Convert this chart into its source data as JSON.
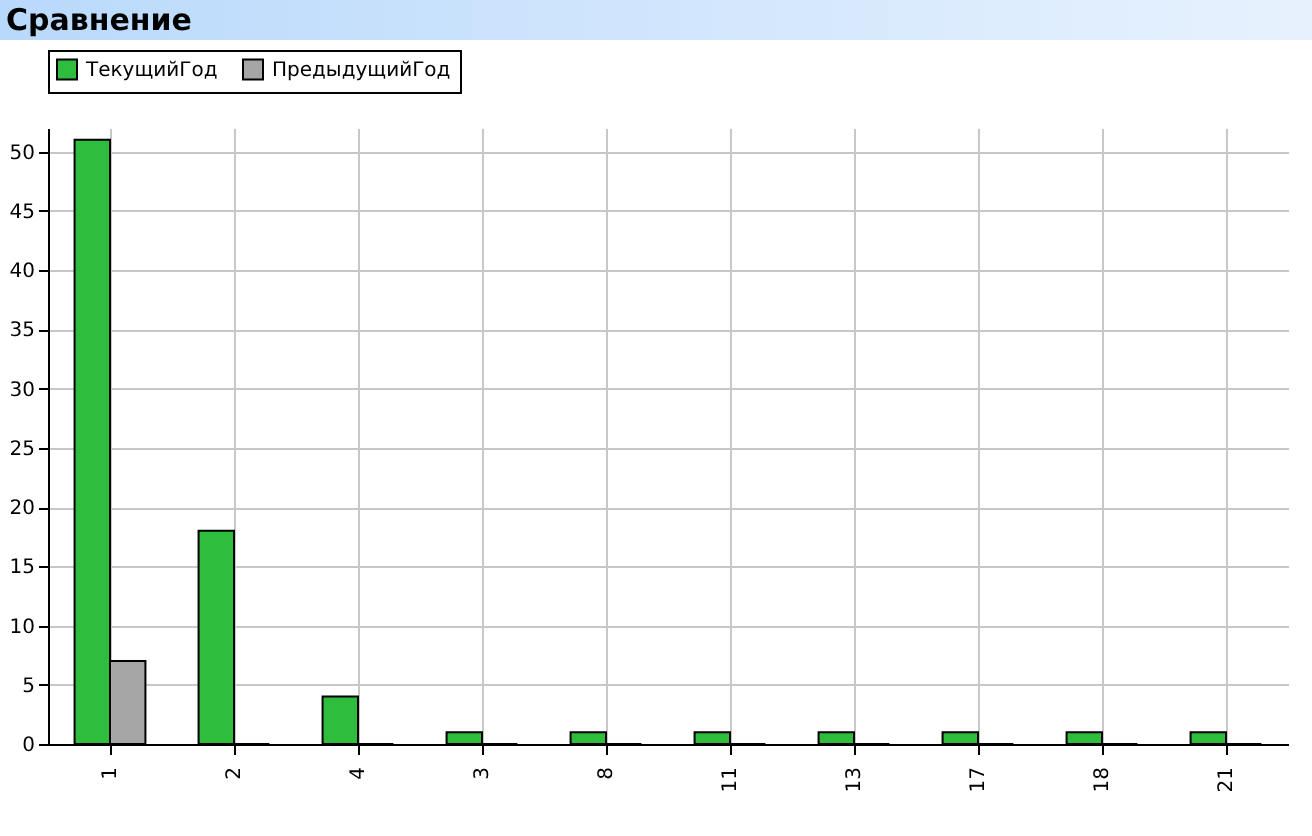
{
  "chart_data": {
    "type": "bar",
    "title": "Сравнение",
    "categories": [
      "1",
      "2",
      "4",
      "3",
      "8",
      "11",
      "13",
      "17",
      "18",
      "21"
    ],
    "series": [
      {
        "name": "ТекущийГод",
        "color": "#2ebd3c",
        "values": [
          51,
          18,
          4,
          1,
          1,
          1,
          1,
          1,
          1,
          1
        ]
      },
      {
        "name": "ПредыдущийГод",
        "color": "#a6a6a6",
        "values": [
          7,
          0,
          0,
          0,
          0,
          0,
          0,
          0,
          0,
          0
        ]
      }
    ],
    "ylim": [
      0,
      52
    ],
    "yticks": [
      0,
      5,
      10,
      15,
      20,
      25,
      30,
      35,
      40,
      45,
      50
    ],
    "grid": true,
    "legend": "top"
  }
}
